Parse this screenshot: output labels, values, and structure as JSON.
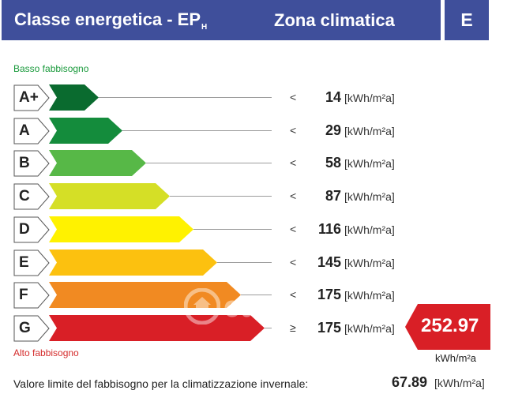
{
  "header": {
    "title": "Classe energetica - EP",
    "title_sub": "H",
    "zone_label": "Zona climatica",
    "zone_value": "E"
  },
  "notes": {
    "low": "Basso fabbisogno",
    "high": "Alto fabbisogno"
  },
  "classes": [
    {
      "letter": "A+",
      "comparator": "<",
      "value": "14",
      "unit": "[kWh/m²a]",
      "color": "#0a6b2f"
    },
    {
      "letter": "A",
      "comparator": "<",
      "value": "29",
      "unit": "[kWh/m²a]",
      "color": "#148c3c"
    },
    {
      "letter": "B",
      "comparator": "<",
      "value": "58",
      "unit": "[kWh/m²a]",
      "color": "#57b847"
    },
    {
      "letter": "C",
      "comparator": "<",
      "value": "87",
      "unit": "[kWh/m²a]",
      "color": "#d5df26"
    },
    {
      "letter": "D",
      "comparator": "<",
      "value": "116",
      "unit": "[kWh/m²a]",
      "color": "#fff200"
    },
    {
      "letter": "E",
      "comparator": "<",
      "value": "145",
      "unit": "[kWh/m²a]",
      "color": "#fcc10f"
    },
    {
      "letter": "F",
      "comparator": "<",
      "value": "175",
      "unit": "[kWh/m²a]",
      "color": "#f18a22"
    },
    {
      "letter": "G",
      "comparator": "≥",
      "value": "175",
      "unit": "[kWh/m²a]",
      "color": "#d91f26"
    }
  ],
  "result": {
    "value": "252.97",
    "unit": "kWh/m²a",
    "color": "#d91f26"
  },
  "limit": {
    "label": "Valore limite del fabbisogno per la climatizzazione invernale:",
    "value": "67.89",
    "unit": "[kWh/m²a]"
  },
  "watermark": {
    "text": "casa.it",
    "icon": "house-icon"
  }
}
